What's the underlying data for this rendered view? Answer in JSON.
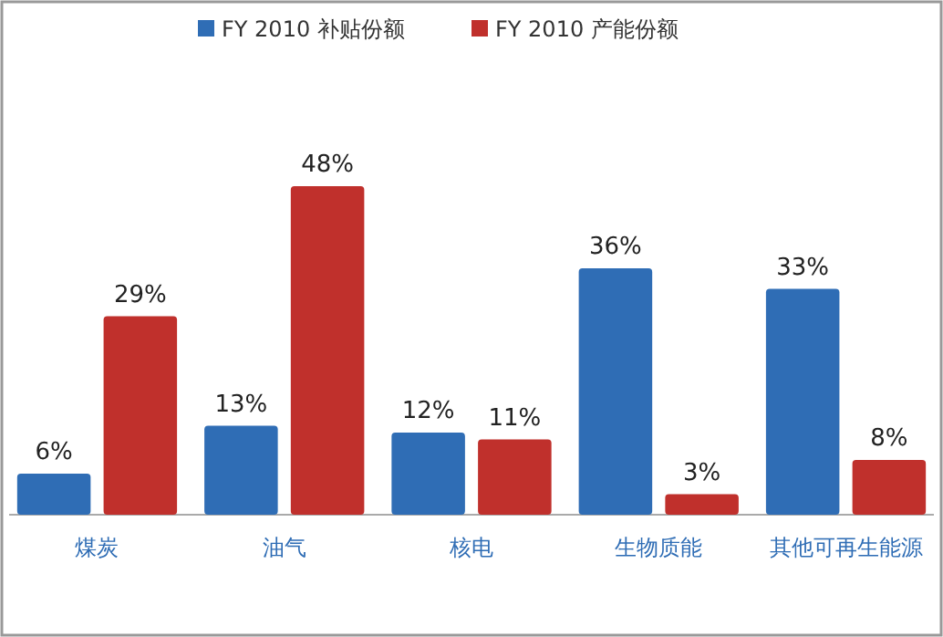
{
  "chart_data": {
    "type": "bar",
    "categories": [
      "煤炭",
      "油气",
      "核电",
      "生物质能",
      "其他可再生能源"
    ],
    "series": [
      {
        "name": "FY 2010 补贴份额",
        "color": "#2f6db5",
        "values": [
          6,
          13,
          12,
          36,
          33
        ],
        "value_labels": [
          "6%",
          "13%",
          "12%",
          "36%",
          "33%"
        ]
      },
      {
        "name": "FY 2010 产能份额",
        "color": "#c0302c",
        "values": [
          29,
          48,
          11,
          3,
          8
        ],
        "value_labels": [
          "29%",
          "48%",
          "11%",
          "3%",
          "8%"
        ]
      }
    ],
    "legend": "top"
  }
}
